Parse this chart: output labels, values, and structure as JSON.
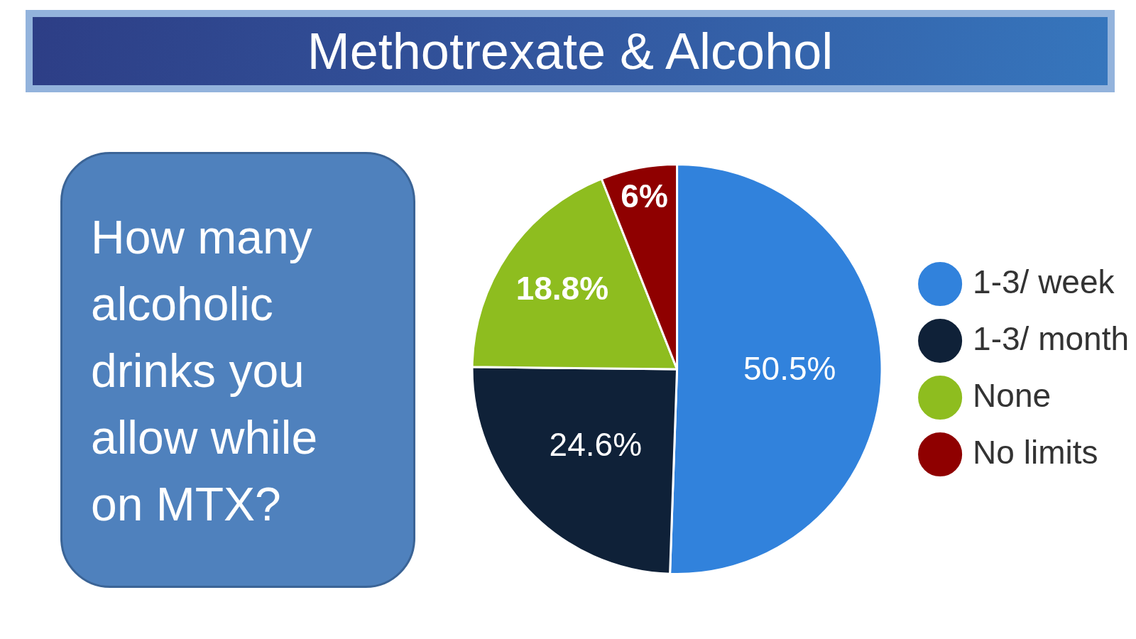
{
  "chart_data": {
    "type": "pie",
    "title": "Methotrexate & Alcohol",
    "annotations": [
      "How many alcoholic drinks you allow while on MTX?"
    ],
    "categories": [
      "1-3/ week",
      "1-3/ month",
      "None",
      "No limits"
    ],
    "values": [
      50.5,
      24.6,
      18.8,
      6
    ],
    "colors": [
      "#3182dc",
      "#0f2138",
      "#8ebd1f",
      "#8f0000"
    ],
    "value_labels": [
      "50.5%",
      "24.6%",
      "18.8%",
      "6%"
    ],
    "legend": "right"
  }
}
